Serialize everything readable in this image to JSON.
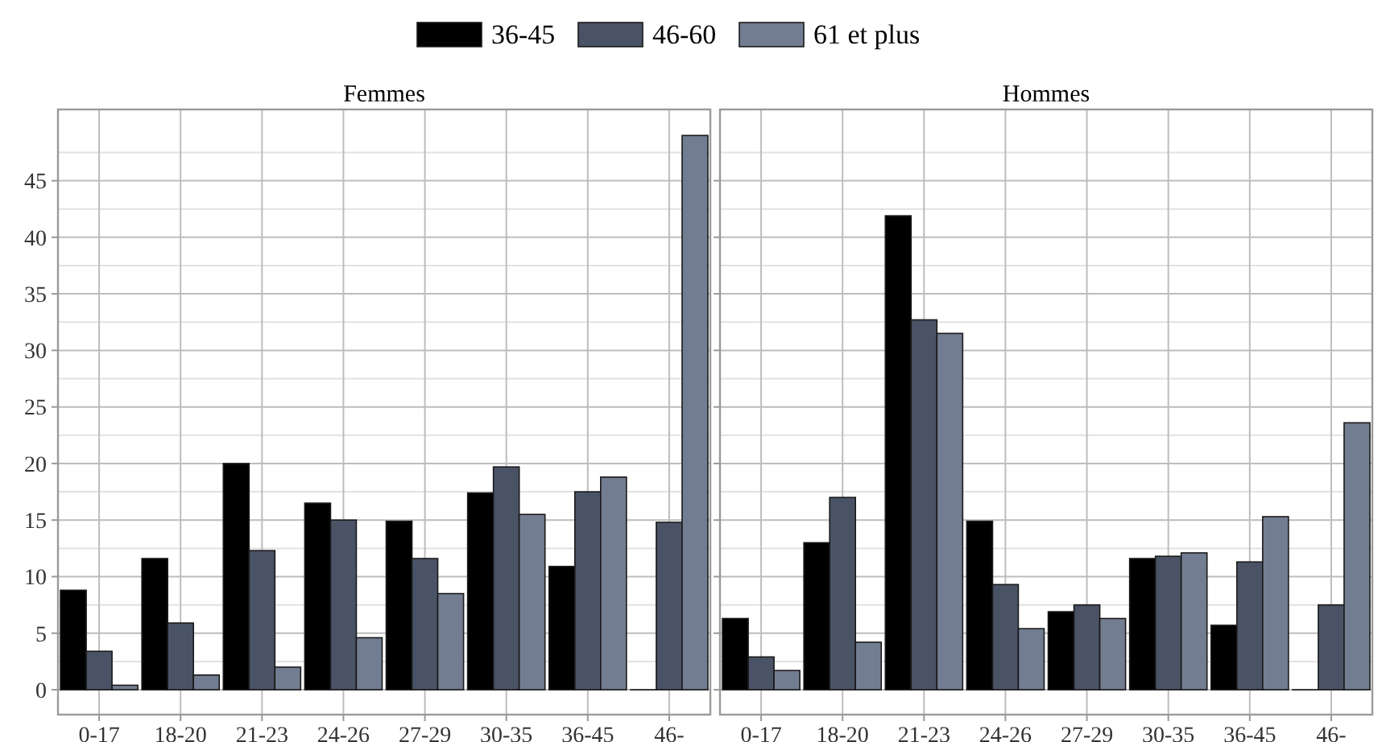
{
  "chart_data": [
    {
      "type": "bar",
      "title": "Femmes",
      "categories": [
        "0-17",
        "18-20",
        "21-23",
        "24-26",
        "27-29",
        "30-35",
        "36-45",
        "46-"
      ],
      "series": [
        {
          "name": "36-45",
          "color": "#000000",
          "values": [
            8.8,
            11.6,
            20.0,
            16.5,
            14.9,
            17.4,
            10.9,
            0
          ]
        },
        {
          "name": "46-60",
          "color": "#4a5366",
          "values": [
            3.4,
            5.9,
            12.3,
            15.0,
            11.6,
            19.7,
            17.5,
            14.8
          ]
        },
        {
          "name": "61 et plus",
          "color": "#737d91",
          "values": [
            0.4,
            1.3,
            2.0,
            4.6,
            8.5,
            15.5,
            18.8,
            49.0
          ]
        }
      ],
      "ylim": [
        -2.2,
        51.3
      ],
      "yticks": [
        0,
        5,
        10,
        15,
        20,
        25,
        30,
        35,
        40,
        45
      ],
      "grid": true,
      "legend": "top"
    },
    {
      "type": "bar",
      "title": "Hommes",
      "categories": [
        "0-17",
        "18-20",
        "21-23",
        "24-26",
        "27-29",
        "30-35",
        "36-45",
        "46-"
      ],
      "series": [
        {
          "color": "#000000",
          "values": [
            6.3,
            13.0,
            41.9,
            14.9,
            6.9,
            11.6,
            5.7,
            0
          ]
        },
        {
          "color": "#4a5366",
          "values": [
            2.9,
            17.0,
            32.7,
            9.3,
            7.5,
            11.8,
            11.3,
            7.5
          ]
        },
        {
          "color": "#737d91",
          "values": [
            1.7,
            4.2,
            31.5,
            5.4,
            6.3,
            12.1,
            15.3,
            23.6
          ]
        }
      ],
      "ylim": [
        -2.2,
        51.3
      ],
      "yticks": [
        0,
        5,
        10,
        15,
        20,
        25,
        30,
        35,
        40,
        45
      ],
      "grid": true,
      "tick_labels": "x"
    }
  ]
}
